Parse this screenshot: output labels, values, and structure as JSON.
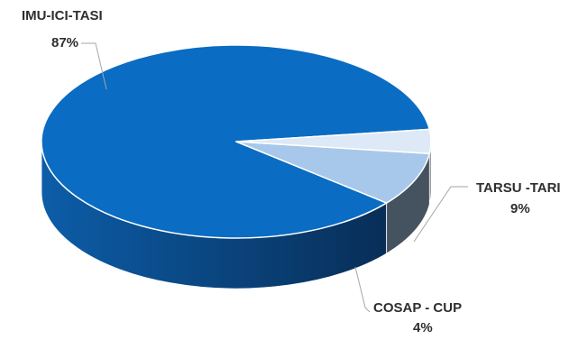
{
  "chart_data": {
    "type": "pie",
    "style": "3d",
    "legend": "none",
    "categories": [
      "IMU-ICI-TASI",
      "TARSU -TARI",
      "COSAP - CUP"
    ],
    "values": [
      87,
      9,
      4
    ],
    "data_labels": [
      {
        "name": "IMU-ICI-TASI",
        "value": "87%"
      },
      {
        "name": "TARSU -TARI",
        "value": "9%"
      },
      {
        "name": "COSAP - CUP",
        "value": "4%"
      }
    ],
    "colors": {
      "top": [
        "#0A6CC2",
        "#A7C8EA",
        "#DDE9F6"
      ],
      "side": [
        "#0B4B8A",
        "#45525F",
        "#5A5E63"
      ],
      "leader": "#A6A6A6",
      "label": "#2E2E2E"
    }
  }
}
